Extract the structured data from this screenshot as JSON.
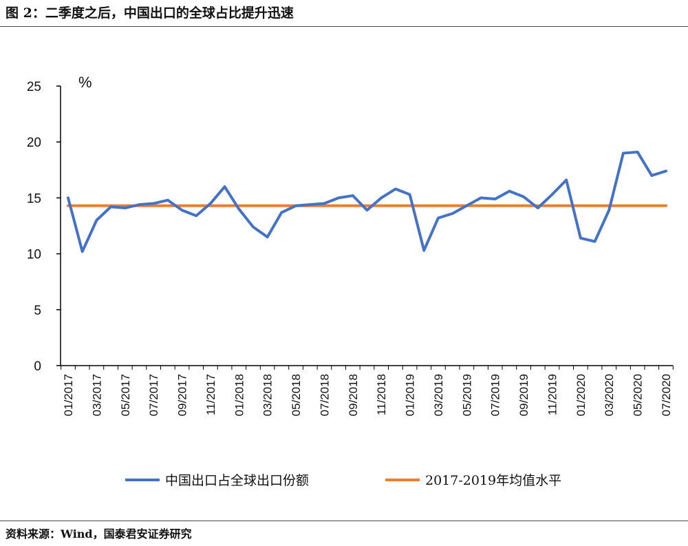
{
  "title": "图 2：二季度之后，中国出口的全球占比提升迅速",
  "source": "资料来源：Wind，国泰君安证券研究",
  "chart_data": {
    "type": "line",
    "ylabel": "%",
    "ylim": [
      0,
      25
    ],
    "yticks": [
      0,
      5,
      10,
      15,
      20,
      25
    ],
    "grid": false,
    "legend_position": "bottom",
    "x": [
      "01/2017",
      "02/2017",
      "03/2017",
      "04/2017",
      "05/2017",
      "06/2017",
      "07/2017",
      "08/2017",
      "09/2017",
      "10/2017",
      "11/2017",
      "12/2017",
      "01/2018",
      "02/2018",
      "03/2018",
      "04/2018",
      "05/2018",
      "06/2018",
      "07/2018",
      "08/2018",
      "09/2018",
      "10/2018",
      "11/2018",
      "12/2018",
      "01/2019",
      "02/2019",
      "03/2019",
      "04/2019",
      "05/2019",
      "06/2019",
      "07/2019",
      "08/2019",
      "09/2019",
      "10/2019",
      "11/2019",
      "12/2019",
      "01/2020",
      "02/2020",
      "03/2020",
      "04/2020",
      "05/2020",
      "06/2020",
      "07/2020"
    ],
    "xtick_labels": [
      "01/2017",
      "03/2017",
      "05/2017",
      "07/2017",
      "09/2017",
      "11/2017",
      "01/2018",
      "03/2018",
      "05/2018",
      "07/2018",
      "09/2018",
      "11/2018",
      "01/2019",
      "03/2019",
      "05/2019",
      "07/2019",
      "09/2019",
      "11/2019",
      "01/2020",
      "03/2020",
      "05/2020",
      "07/2020"
    ],
    "series": [
      {
        "name": "中国出口占全球出口份额",
        "color": "#4472C4",
        "values": [
          15.0,
          10.2,
          13.0,
          14.2,
          14.1,
          14.4,
          14.5,
          14.8,
          13.9,
          13.4,
          14.5,
          16.0,
          14.0,
          12.4,
          11.5,
          13.7,
          14.3,
          14.4,
          14.5,
          15.0,
          15.2,
          13.9,
          15.0,
          15.8,
          15.3,
          10.3,
          13.2,
          13.6,
          14.3,
          15.0,
          14.9,
          15.6,
          15.1,
          14.1,
          15.3,
          16.6,
          11.4,
          11.1,
          13.9,
          19.0,
          19.1,
          17.0,
          17.4
        ]
      },
      {
        "name": "2017-2019年均值水平",
        "color": "#ED7D31",
        "constant": 14.3
      }
    ]
  }
}
